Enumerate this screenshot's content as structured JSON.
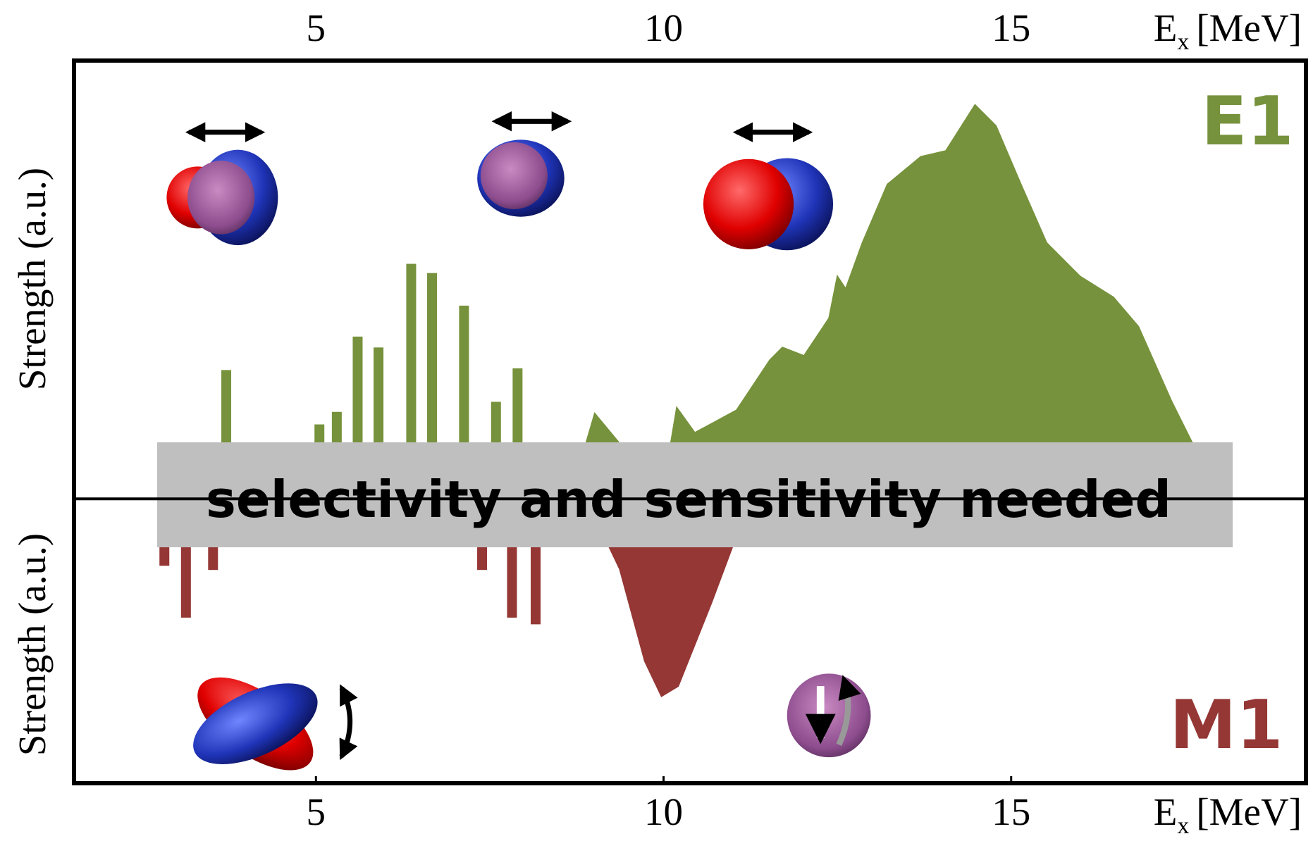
{
  "chart_data": {
    "type": "mixed",
    "xlabel": {
      "main": "E",
      "sub": "x",
      "unit": "[MeV]"
    },
    "ylabel_upper": "Strength (a.u.)",
    "ylabel_lower": "Strength (a.u.)",
    "xlim": [
      1.52,
      19.24
    ],
    "xticks": [
      5,
      10,
      15
    ],
    "ylim": [
      -3.4,
      5.24
    ],
    "banner": "selectivity and sensitivity needed",
    "series": [
      {
        "name": "E1",
        "color": "#76923c",
        "bars": {
          "x": [
            3.71,
            5.05,
            5.3,
            5.6,
            5.9,
            6.37,
            6.67,
            7.13,
            7.59,
            7.9
          ],
          "values": [
            1.54,
            0.89,
            1.04,
            1.94,
            1.81,
            2.81,
            2.7,
            2.31,
            1.16,
            1.56
          ]
        },
        "area": {
          "x": [
            8.65,
            9.01,
            9.37,
            9.67,
            9.97,
            10.19,
            10.45,
            11.05,
            11.53,
            11.71,
            12.02,
            12.38,
            12.5,
            12.62,
            12.86,
            13.22,
            13.7,
            14.06,
            14.48,
            14.78,
            15.14,
            15.51,
            15.99,
            16.47,
            16.83,
            17.31,
            17.67,
            17.91
          ],
          "values": [
            0,
            1.02,
            0.66,
            0,
            0,
            1.09,
            0.79,
            1.06,
            1.66,
            1.81,
            1.71,
            2.16,
            2.66,
            2.51,
            3.06,
            3.76,
            4.09,
            4.16,
            4.71,
            4.46,
            3.76,
            3.06,
            2.66,
            2.41,
            2.06,
            1.16,
            0.56,
            0
          ]
        }
      },
      {
        "name": "M1",
        "color": "#953735",
        "bars": {
          "x": [
            2.82,
            3.13,
            3.52,
            7.39,
            7.82,
            8.16
          ],
          "values": [
            -0.8,
            -1.42,
            -0.85,
            -0.85,
            -1.42,
            -1.5
          ]
        },
        "area": {
          "x": [
            8.89,
            9.37,
            9.73,
            9.97,
            10.21,
            10.69,
            11.05,
            11.23
          ],
          "values": [
            0,
            -0.84,
            -1.94,
            -2.36,
            -2.24,
            -1.24,
            -0.44,
            0
          ]
        }
      }
    ]
  }
}
